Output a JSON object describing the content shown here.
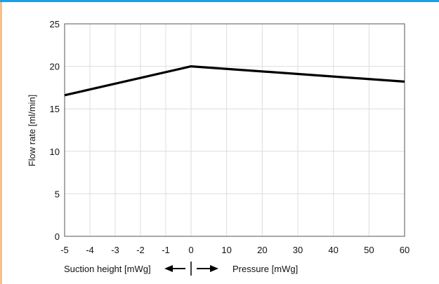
{
  "chart_data": {
    "type": "line",
    "title": "",
    "ylabel": "Flow rate [ml/min]",
    "xlabel_left": "Suction height [mWg]",
    "xlabel_right": "Pressure [mWg]",
    "ylim": [
      0,
      25
    ],
    "yticks": [
      "0",
      "5",
      "10",
      "15",
      "20",
      "25"
    ],
    "xticks_left": [
      "-5",
      "-4",
      "-3",
      "-2",
      "-1",
      "0"
    ],
    "xticks_right": [
      "10",
      "20",
      "30",
      "40",
      "50",
      "60"
    ],
    "grid": true,
    "legend": "none",
    "line_color": "#000000",
    "series": [
      {
        "points": [
          {
            "x": -5,
            "y": 16.6
          },
          {
            "x": 0,
            "y": 20.0
          },
          {
            "x": 60,
            "y": 18.2
          }
        ]
      }
    ]
  }
}
